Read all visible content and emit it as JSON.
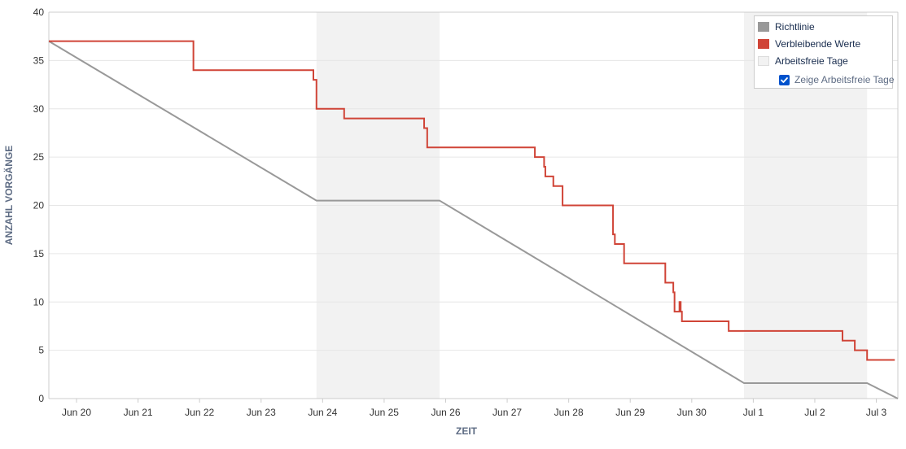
{
  "chart_data": {
    "type": "line",
    "title": "",
    "xlabel": "ZEIT",
    "ylabel": "ANZAHL VORGÄNGE",
    "ylim": [
      0,
      40
    ],
    "yticks": [
      0,
      5,
      10,
      15,
      20,
      25,
      30,
      35,
      40
    ],
    "xlim": [
      -0.45,
      13.35
    ],
    "x_tick_labels": [
      "Jun 20",
      "Jun 21",
      "Jun 22",
      "Jun 23",
      "Jun 24",
      "Jun 25",
      "Jun 26",
      "Jun 27",
      "Jun 28",
      "Jun 29",
      "Jun 30",
      "Jul 1",
      "Jul 2",
      "Jul 3"
    ],
    "x_tick_positions": [
      0,
      1,
      2,
      3,
      4,
      5,
      6,
      7,
      8,
      9,
      10,
      11,
      12,
      13
    ],
    "non_working_periods": [
      [
        3.9,
        5.9
      ],
      [
        10.85,
        12.85
      ]
    ],
    "legend_position": "top-right",
    "series": [
      {
        "name": "Richtlinie",
        "color": "#999999",
        "points": [
          [
            -0.45,
            37
          ],
          [
            3.9,
            20.5
          ],
          [
            5.9,
            20.5
          ],
          [
            10.85,
            1.6
          ],
          [
            12.85,
            1.6
          ],
          [
            13.35,
            0
          ]
        ]
      },
      {
        "name": "Verbleibende Werte",
        "color": "#d04437",
        "step": true,
        "points": [
          [
            -0.45,
            37
          ],
          [
            1.9,
            34
          ],
          [
            3.85,
            33
          ],
          [
            3.9,
            30
          ],
          [
            4.35,
            29
          ],
          [
            5.65,
            28
          ],
          [
            5.7,
            26
          ],
          [
            7.45,
            25
          ],
          [
            7.6,
            24
          ],
          [
            7.62,
            23
          ],
          [
            7.75,
            22
          ],
          [
            7.9,
            20
          ],
          [
            8.72,
            17
          ],
          [
            8.75,
            16
          ],
          [
            8.9,
            14
          ],
          [
            9.57,
            12
          ],
          [
            9.7,
            11
          ],
          [
            9.72,
            9
          ],
          [
            9.8,
            10
          ],
          [
            9.82,
            9
          ],
          [
            9.84,
            8
          ],
          [
            10.6,
            7
          ],
          [
            12.45,
            6
          ],
          [
            12.65,
            5
          ],
          [
            12.85,
            4
          ],
          [
            13.3,
            4
          ]
        ]
      }
    ]
  },
  "legend": {
    "items": [
      {
        "label": "Richtlinie",
        "swatch": "#999999",
        "border": "#999999"
      },
      {
        "label": "Verbleibende Werte",
        "swatch": "#d04437",
        "border": "#d04437"
      },
      {
        "label": "Arbeitsfreie Tage",
        "swatch": "#f2f2f2",
        "border": "#dddddd"
      }
    ],
    "toggle_label": "Zeige Arbeitsfreie Tage",
    "toggle_checked": true
  },
  "colors": {
    "non_working": "#f2f2f2",
    "grid": "#e6e6e6",
    "axis": "#cccccc"
  }
}
